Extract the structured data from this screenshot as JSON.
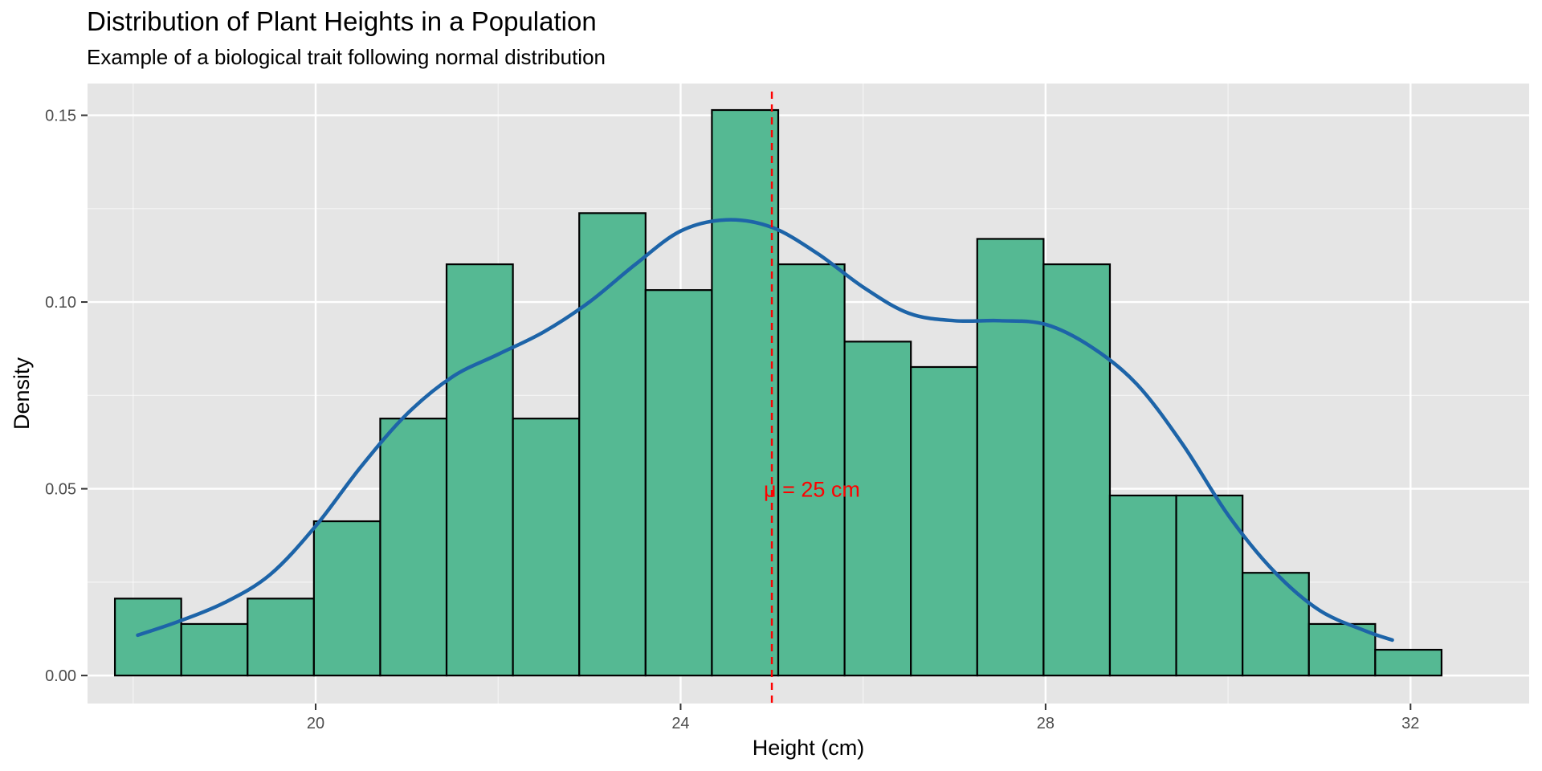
{
  "chart_data": {
    "type": "bar",
    "title": "Distribution of Plant Heights in a Population",
    "subtitle": "Example of a biological trait following normal distribution",
    "xlabel": "Height (cm)",
    "ylabel": "Density",
    "xlim": [
      17.5,
      33.3
    ],
    "ylim": [
      -0.0075,
      0.1585
    ],
    "x_ticks": [
      20,
      24,
      28,
      32
    ],
    "y_ticks": [
      0.0,
      0.05,
      0.1,
      0.15
    ],
    "y_tick_labels": [
      "0.00",
      "0.05",
      "0.10",
      "0.15"
    ],
    "bin_edges": [
      17.8,
      18.527,
      19.254,
      19.981,
      20.708,
      21.435,
      22.162,
      22.889,
      23.616,
      24.343,
      25.07,
      25.797,
      26.524,
      27.251,
      27.978,
      28.705,
      29.432,
      30.159,
      30.886,
      31.613,
      32.34
    ],
    "densities": [
      0.0206,
      0.0138,
      0.0206,
      0.0413,
      0.0688,
      0.1101,
      0.0688,
      0.1238,
      0.1032,
      0.1514,
      0.1101,
      0.0894,
      0.0826,
      0.1169,
      0.1101,
      0.0482,
      0.0482,
      0.0275,
      0.0138,
      0.0069
    ],
    "density_curve": {
      "x": [
        18.05,
        18.5,
        19.0,
        19.5,
        20.0,
        20.5,
        21.0,
        21.5,
        22.0,
        22.5,
        23.0,
        23.5,
        24.0,
        24.5,
        25.0,
        25.5,
        26.0,
        26.5,
        27.0,
        27.5,
        28.0,
        28.5,
        29.0,
        29.5,
        30.0,
        30.5,
        31.0,
        31.5,
        31.8
      ],
      "y": [
        0.0108,
        0.0145,
        0.0195,
        0.027,
        0.04,
        0.056,
        0.07,
        0.08,
        0.086,
        0.092,
        0.1,
        0.11,
        0.119,
        0.122,
        0.12,
        0.113,
        0.104,
        0.097,
        0.095,
        0.095,
        0.094,
        0.088,
        0.078,
        0.062,
        0.043,
        0.028,
        0.0175,
        0.012,
        0.0095
      ]
    },
    "mean_line": {
      "x": 25.0,
      "label": "μ = 25 cm"
    },
    "colors": {
      "bar_fill": "#55b993",
      "bar_stroke": "#000000",
      "curve": "#1d64a8",
      "mean_line": "#ff0000",
      "panel": "#e5e5e5",
      "grid": "#ffffff",
      "axis_text": "#4d4d4d"
    },
    "grid": true,
    "legend": "none"
  }
}
